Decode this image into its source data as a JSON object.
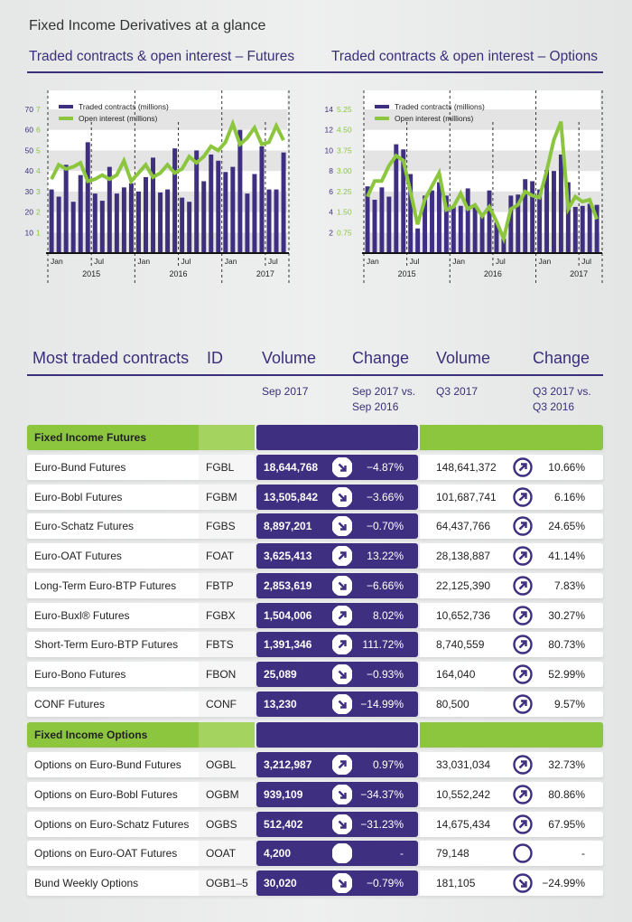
{
  "title": "Fixed Income Derivatives at a glance",
  "colors": {
    "purple": "#3f2f80",
    "green": "#8cc63f",
    "band": "#e4e4e4"
  },
  "chart_data": [
    {
      "type": "bar+line",
      "title": "Traded contracts & open interest – Futures",
      "legend": [
        "Traded contracts (millions)",
        "Open interest (millions)"
      ],
      "legend_placement": "top-left",
      "x_month_labels": [
        "Jan",
        "Jul",
        "Jan",
        "Jul",
        "Jan",
        "Jul"
      ],
      "x_year_labels": [
        "2015",
        "2016",
        "2017"
      ],
      "y_left_ticks": [
        10,
        20,
        30,
        40,
        50,
        60,
        70
      ],
      "y_right_ticks": [
        1,
        2,
        3,
        4,
        5,
        6,
        7
      ],
      "ylim_left": [
        0,
        70
      ],
      "ylim_right": [
        0,
        7
      ],
      "series": [
        {
          "name": "Traded contracts (millions)",
          "axis": "left",
          "values": [
            31,
            27.5,
            43,
            25,
            38,
            54,
            29,
            25.5,
            42,
            29,
            32,
            34,
            30,
            37,
            46.5,
            29.5,
            31,
            51,
            27,
            25,
            50,
            35,
            48,
            45,
            39.5,
            42,
            60,
            29,
            38.5,
            52,
            31,
            31,
            49
          ]
        },
        {
          "name": "Open interest (millions)",
          "axis": "right",
          "values": [
            3.6,
            4.3,
            4.1,
            4.2,
            4.4,
            3.5,
            3.6,
            3.8,
            3.6,
            3.8,
            4.5,
            3.5,
            3.9,
            4.3,
            3.7,
            3.9,
            4.3,
            3.9,
            4.1,
            4.7,
            4.4,
            4.7,
            5.2,
            5.0,
            5.4,
            6.3,
            5.3,
            5.6,
            6.1,
            5.3,
            5.4,
            6.2,
            5.5
          ]
        }
      ]
    },
    {
      "type": "bar+line",
      "title": "Traded contracts & open interest – Options",
      "legend": [
        "Traded contracts (millions)",
        "Open interest (millions)"
      ],
      "legend_placement": "top-left",
      "x_month_labels": [
        "Jan",
        "Jul",
        "Jan",
        "Jul",
        "Jan",
        "Jul"
      ],
      "x_year_labels": [
        "2015",
        "2016",
        "2017"
      ],
      "y_left_ticks": [
        2,
        4,
        6,
        8,
        10,
        12,
        14
      ],
      "y_right_ticks": [
        "0.75",
        "1.50",
        "2.25",
        "3.00",
        "3.75",
        "4.50",
        "5.25"
      ],
      "ylim_left": [
        0,
        14
      ],
      "ylim_right": [
        0,
        5.25
      ],
      "series": [
        {
          "name": "Traded contracts (millions)",
          "axis": "left",
          "values": [
            6.5,
            5.2,
            6.4,
            5.5,
            10.6,
            10.1,
            7.7,
            2.4,
            5.6,
            6.1,
            6.9,
            5.6,
            4.5,
            4.6,
            6.3,
            4.5,
            3.7,
            6.1,
            3.0,
            1.4,
            5.6,
            5.7,
            7.2,
            7.0,
            6.2,
            8.1,
            8.0,
            9.6,
            6.9,
            4.5,
            4.6,
            4.8,
            4.7
          ]
        },
        {
          "name": "Open interest (millions)",
          "axis": "right",
          "values": [
            2.06,
            2.63,
            2.63,
            3.19,
            3.56,
            3.38,
            2.25,
            1.05,
            1.95,
            2.44,
            2.93,
            1.58,
            1.69,
            2.18,
            1.61,
            1.76,
            1.35,
            1.69,
            1.16,
            0.53,
            1.61,
            1.76,
            2.25,
            2.1,
            2.03,
            3.0,
            4.13,
            4.8,
            1.61,
            2.06,
            1.88,
            1.95,
            1.24
          ]
        }
      ]
    }
  ],
  "table": {
    "headers": [
      "Most traded contracts",
      "ID",
      "Volume",
      "Change",
      "Volume",
      "Change"
    ],
    "subheaders": {
      "vol_sep": "Sep 2017",
      "chg_sep_1": "Sep 2017 vs.",
      "chg_sep_2": "Sep 2016",
      "vol_q3": "Q3 2017",
      "chg_q3_1": "Q3 2017 vs.",
      "chg_q3_2": "Q3 2016"
    },
    "groups": [
      {
        "label": "Fixed Income Futures",
        "rows": [
          {
            "name": "Euro-Bund Futures",
            "id": "FGBL",
            "vol_sep": "18,644,768",
            "dir_sep": "down",
            "chg_sep": "−4.87%",
            "vol_q3": "148,641,372",
            "dir_q3": "up",
            "chg_q3": "10.66%"
          },
          {
            "name": "Euro-Bobl Futures",
            "id": "FGBM",
            "vol_sep": "13,505,842",
            "dir_sep": "down",
            "chg_sep": "−3.66%",
            "vol_q3": "101,687,741",
            "dir_q3": "up",
            "chg_q3": "6.16%"
          },
          {
            "name": "Euro-Schatz Futures",
            "id": "FGBS",
            "vol_sep": "8,897,201",
            "dir_sep": "down",
            "chg_sep": "−0.70%",
            "vol_q3": "64,437,766",
            "dir_q3": "up",
            "chg_q3": "24.65%"
          },
          {
            "name": "Euro-OAT Futures",
            "id": "FOAT",
            "vol_sep": "3,625,413",
            "dir_sep": "up",
            "chg_sep": "13.22%",
            "vol_q3": "28,138,887",
            "dir_q3": "up",
            "chg_q3": "41.14%"
          },
          {
            "name": "Long-Term Euro-BTP Futures",
            "id": "FBTP",
            "vol_sep": "2,853,619",
            "dir_sep": "down",
            "chg_sep": "−6.66%",
            "vol_q3": "22,125,390",
            "dir_q3": "up",
            "chg_q3": "7.83%"
          },
          {
            "name": "Euro-Buxl® Futures",
            "id": "FGBX",
            "vol_sep": "1,504,006",
            "dir_sep": "up",
            "chg_sep": "8.02%",
            "vol_q3": "10,652,736",
            "dir_q3": "up",
            "chg_q3": "30.27%"
          },
          {
            "name": "Short-Term Euro-BTP Futures",
            "id": "FBTS",
            "vol_sep": "1,391,346",
            "dir_sep": "up",
            "chg_sep": "111.72%",
            "vol_q3": "8,740,559",
            "dir_q3": "up",
            "chg_q3": "80.73%"
          },
          {
            "name": "Euro-Bono Futures",
            "id": "FBON",
            "vol_sep": "25,089",
            "dir_sep": "down",
            "chg_sep": "−0.93%",
            "vol_q3": "164,040",
            "dir_q3": "up",
            "chg_q3": "52.99%"
          },
          {
            "name": "CONF Futures",
            "id": "CONF",
            "vol_sep": "13,230",
            "dir_sep": "down",
            "chg_sep": "−14.99%",
            "vol_q3": "80,500",
            "dir_q3": "up",
            "chg_q3": "9.57%"
          }
        ]
      },
      {
        "label": "Fixed Income Options",
        "rows": [
          {
            "name": "Options on Euro-Bund Futures",
            "id": "OGBL",
            "vol_sep": "3,212,987",
            "dir_sep": "up",
            "chg_sep": "0.97%",
            "vol_q3": "33,031,034",
            "dir_q3": "up",
            "chg_q3": "32.73%"
          },
          {
            "name": "Options on Euro-Bobl Futures",
            "id": "OGBM",
            "vol_sep": "939,109",
            "dir_sep": "down",
            "chg_sep": "−34.37%",
            "vol_q3": "10,552,242",
            "dir_q3": "up",
            "chg_q3": "80.86%"
          },
          {
            "name": "Options on Euro-Schatz Futures",
            "id": "OGBS",
            "vol_sep": "512,402",
            "dir_sep": "down",
            "chg_sep": "−31.23%",
            "vol_q3": "14,675,434",
            "dir_q3": "up",
            "chg_q3": "67.95%"
          },
          {
            "name": "Options on Euro-OAT Futures",
            "id": "OOAT",
            "vol_sep": "4,200",
            "dir_sep": "none",
            "chg_sep": "-",
            "vol_q3": "79,148",
            "dir_q3": "none",
            "chg_q3": "-"
          },
          {
            "name": "Bund Weekly Options",
            "id": "OGB1–5",
            "vol_sep": "30,020",
            "dir_sep": "down",
            "chg_sep": "−0.79%",
            "vol_q3": "181,105",
            "dir_q3": "down",
            "chg_q3": "−24.99%"
          }
        ]
      }
    ]
  }
}
